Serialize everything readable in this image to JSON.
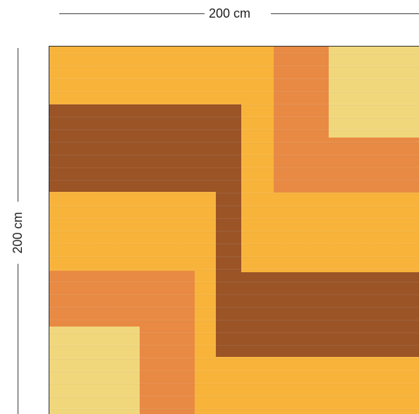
{
  "dimensions": {
    "width_label": "200 cm",
    "height_label": "200 cm"
  },
  "colors": {
    "amber": "#f9b13c",
    "orange": "#e88a44",
    "brown": "#9a5426",
    "yellow": "#f1d77c"
  }
}
